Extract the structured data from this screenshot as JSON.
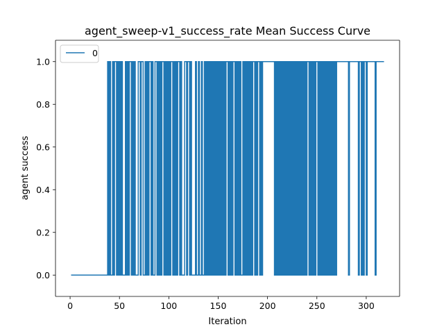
{
  "chart_data": {
    "type": "line",
    "title": "agent_sweep-v1_success_rate Mean Success Curve",
    "xlabel": "Iteration",
    "ylabel": "agent success",
    "xlim": [
      -14.8,
      333.8
    ],
    "ylim": [
      -0.1,
      1.1
    ],
    "xticks": [
      0,
      50,
      100,
      150,
      200,
      250,
      300
    ],
    "yticks": [
      0.0,
      0.2,
      0.4,
      0.6,
      0.8,
      1.0
    ],
    "xtick_labels": [
      "0",
      "50",
      "100",
      "150",
      "200",
      "250",
      "300"
    ],
    "ytick_labels": [
      "0.0",
      "0.2",
      "0.4",
      "0.6",
      "0.8",
      "1.0"
    ],
    "grid": false,
    "legend": {
      "placement": "upper-left",
      "entries": [
        "0"
      ]
    },
    "series": [
      {
        "name": "0",
        "color": "#1f77b4",
        "step_segments": [
          [
            1,
            0
          ],
          [
            38,
            1
          ],
          [
            39,
            0
          ],
          [
            40,
            1
          ],
          [
            41,
            0
          ],
          [
            43,
            1
          ],
          [
            44,
            0
          ],
          [
            45,
            1
          ],
          [
            47,
            0
          ],
          [
            48,
            1
          ],
          [
            49,
            0
          ],
          [
            50,
            1
          ],
          [
            51,
            0
          ],
          [
            52,
            1
          ],
          [
            53,
            0
          ],
          [
            56,
            1
          ],
          [
            57,
            0
          ],
          [
            58,
            1
          ],
          [
            59,
            0
          ],
          [
            60,
            1
          ],
          [
            62,
            0
          ],
          [
            63,
            1
          ],
          [
            64,
            0
          ],
          [
            65,
            1
          ],
          [
            66,
            0
          ],
          [
            69,
            1
          ],
          [
            71,
            0
          ],
          [
            72,
            1
          ],
          [
            74,
            0
          ],
          [
            76,
            1
          ],
          [
            77,
            0
          ],
          [
            78,
            1
          ],
          [
            79,
            0
          ],
          [
            80,
            1
          ],
          [
            82,
            0
          ],
          [
            83,
            1
          ],
          [
            84,
            0
          ],
          [
            86,
            1
          ],
          [
            88,
            0
          ],
          [
            89,
            1
          ],
          [
            90,
            0
          ],
          [
            91,
            1
          ],
          [
            92,
            0
          ],
          [
            93,
            1
          ],
          [
            95,
            0
          ],
          [
            96,
            1
          ],
          [
            97,
            0
          ],
          [
            98,
            1
          ],
          [
            99,
            0
          ],
          [
            100,
            1
          ],
          [
            101,
            0
          ],
          [
            102,
            1
          ],
          [
            104,
            0
          ],
          [
            105,
            1
          ],
          [
            106,
            0
          ],
          [
            107,
            1
          ],
          [
            108,
            0
          ],
          [
            109,
            1
          ],
          [
            111,
            0
          ],
          [
            112,
            1
          ],
          [
            113,
            0
          ],
          [
            116,
            1
          ],
          [
            118,
            0
          ],
          [
            119,
            1
          ],
          [
            121,
            0
          ],
          [
            122,
            1
          ],
          [
            123,
            0
          ],
          [
            127,
            1
          ],
          [
            128,
            0
          ],
          [
            130,
            1
          ],
          [
            131,
            0
          ],
          [
            133,
            1
          ],
          [
            134,
            0
          ],
          [
            136,
            1
          ],
          [
            137,
            0
          ],
          [
            138,
            1
          ],
          [
            139,
            0
          ],
          [
            140,
            1
          ],
          [
            141,
            0
          ],
          [
            142,
            1
          ],
          [
            143,
            0
          ],
          [
            144,
            1
          ],
          [
            145,
            0
          ],
          [
            146,
            1
          ],
          [
            147,
            0
          ],
          [
            148,
            1
          ],
          [
            149,
            0
          ],
          [
            150,
            1
          ],
          [
            151,
            0
          ],
          [
            152,
            1
          ],
          [
            153,
            0
          ],
          [
            154,
            1
          ],
          [
            155,
            0
          ],
          [
            156,
            1
          ],
          [
            157,
            0
          ],
          [
            158,
            1
          ],
          [
            160,
            0
          ],
          [
            161,
            1
          ],
          [
            162,
            0
          ],
          [
            163,
            1
          ],
          [
            164,
            0
          ],
          [
            165,
            1
          ],
          [
            167,
            0
          ],
          [
            168,
            1
          ],
          [
            169,
            0
          ],
          [
            170,
            1
          ],
          [
            171,
            0
          ],
          [
            172,
            1
          ],
          [
            173,
            0
          ],
          [
            175,
            1
          ],
          [
            176,
            0
          ],
          [
            177,
            1
          ],
          [
            178,
            0
          ],
          [
            179,
            1
          ],
          [
            180,
            0
          ],
          [
            181,
            1
          ],
          [
            182,
            0
          ],
          [
            183,
            1
          ],
          [
            184,
            0
          ],
          [
            185,
            1
          ],
          [
            187,
            0
          ],
          [
            188,
            1
          ],
          [
            189,
            0
          ],
          [
            190,
            1
          ],
          [
            192,
            0
          ],
          [
            193,
            1
          ],
          [
            194,
            0
          ],
          [
            195,
            1
          ],
          [
            207,
            0
          ],
          [
            208,
            1
          ],
          [
            209,
            0
          ],
          [
            210,
            1
          ],
          [
            211,
            0
          ],
          [
            212,
            1
          ],
          [
            213,
            0
          ],
          [
            214,
            1
          ],
          [
            215,
            0
          ],
          [
            216,
            1
          ],
          [
            217,
            0
          ],
          [
            218,
            1
          ],
          [
            219,
            0
          ],
          [
            220,
            1
          ],
          [
            221,
            0
          ],
          [
            222,
            1
          ],
          [
            223,
            0
          ],
          [
            224,
            1
          ],
          [
            225,
            0
          ],
          [
            226,
            1
          ],
          [
            227,
            0
          ],
          [
            228,
            1
          ],
          [
            229,
            0
          ],
          [
            230,
            1
          ],
          [
            231,
            0
          ],
          [
            232,
            1
          ],
          [
            233,
            0
          ],
          [
            234,
            1
          ],
          [
            235,
            0
          ],
          [
            236,
            1
          ],
          [
            237,
            0
          ],
          [
            238,
            1
          ],
          [
            239,
            0
          ],
          [
            240,
            1
          ],
          [
            242,
            0
          ],
          [
            243,
            1
          ],
          [
            244,
            0
          ],
          [
            245,
            1
          ],
          [
            246,
            0
          ],
          [
            247,
            1
          ],
          [
            248,
            0
          ],
          [
            249,
            1
          ],
          [
            251,
            0
          ],
          [
            252,
            1
          ],
          [
            253,
            0
          ],
          [
            254,
            1
          ],
          [
            255,
            0
          ],
          [
            256,
            1
          ],
          [
            257,
            0
          ],
          [
            258,
            1
          ],
          [
            259,
            0
          ],
          [
            260,
            1
          ],
          [
            261,
            0
          ],
          [
            262,
            1
          ],
          [
            263,
            0
          ],
          [
            264,
            1
          ],
          [
            265,
            0
          ],
          [
            266,
            1
          ],
          [
            267,
            0
          ],
          [
            268,
            1
          ],
          [
            269,
            0
          ],
          [
            270,
            1
          ],
          [
            282,
            0
          ],
          [
            283,
            1
          ],
          [
            292,
            0
          ],
          [
            293,
            1
          ],
          [
            295,
            0
          ],
          [
            296,
            1
          ],
          [
            297,
            0
          ],
          [
            298,
            1
          ],
          [
            300,
            0
          ],
          [
            301,
            1
          ],
          [
            309,
            0
          ],
          [
            310,
            1
          ],
          [
            318,
            1
          ]
        ]
      }
    ]
  }
}
